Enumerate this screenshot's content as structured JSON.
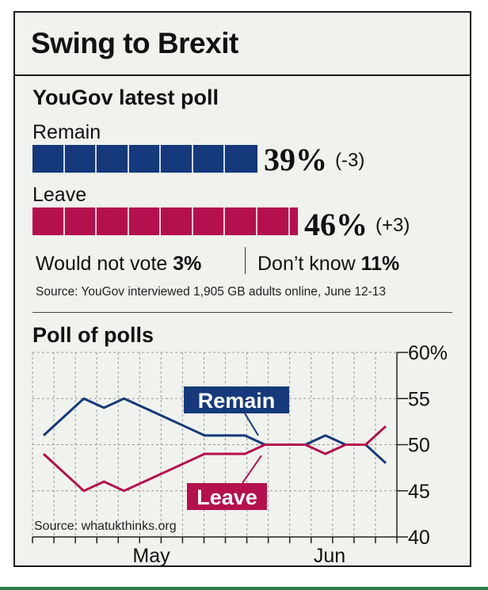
{
  "title": "Swing to Brexit",
  "yougov": {
    "title": "YouGov latest poll",
    "remain": {
      "label": "Remain",
      "value": 39,
      "pct_text": "39%",
      "change": "(-3)",
      "color": "#15397a"
    },
    "leave": {
      "label": "Leave",
      "value": 46,
      "pct_text": "46%",
      "change": "(+3)",
      "color": "#b5104e"
    },
    "would_not_vote": {
      "label": "Would not vote",
      "value": "3%"
    },
    "dont_know": {
      "label": "Don’t know",
      "value": "11%"
    },
    "source": "Source: YouGov interviewed 1,905 GB adults online, June 12-13"
  },
  "poll_of_polls": {
    "title": "Poll of polls",
    "source": "Source: whatukthinks.org",
    "remain_label": "Remain",
    "leave_label": "Leave"
  },
  "chart_data": {
    "type": "line",
    "xlabel": "",
    "ylabel": "",
    "x_tick_labels": [
      "May",
      "Jun"
    ],
    "y_tick_labels": [
      "40",
      "45",
      "50",
      "55",
      "60%"
    ],
    "y_ticks": [
      40,
      45,
      50,
      55,
      60
    ],
    "ylim": [
      40,
      60
    ],
    "grid": true,
    "series": [
      {
        "name": "Remain",
        "color": "#15397a",
        "values": [
          51,
          53,
          55,
          54,
          55,
          54,
          53,
          52,
          51,
          51,
          51,
          50,
          50,
          50,
          51,
          50,
          50,
          48
        ]
      },
      {
        "name": "Leave",
        "color": "#b5104e",
        "values": [
          49,
          47,
          45,
          46,
          45,
          46,
          47,
          48,
          49,
          49,
          49,
          50,
          50,
          50,
          49,
          50,
          50,
          52
        ]
      }
    ]
  }
}
